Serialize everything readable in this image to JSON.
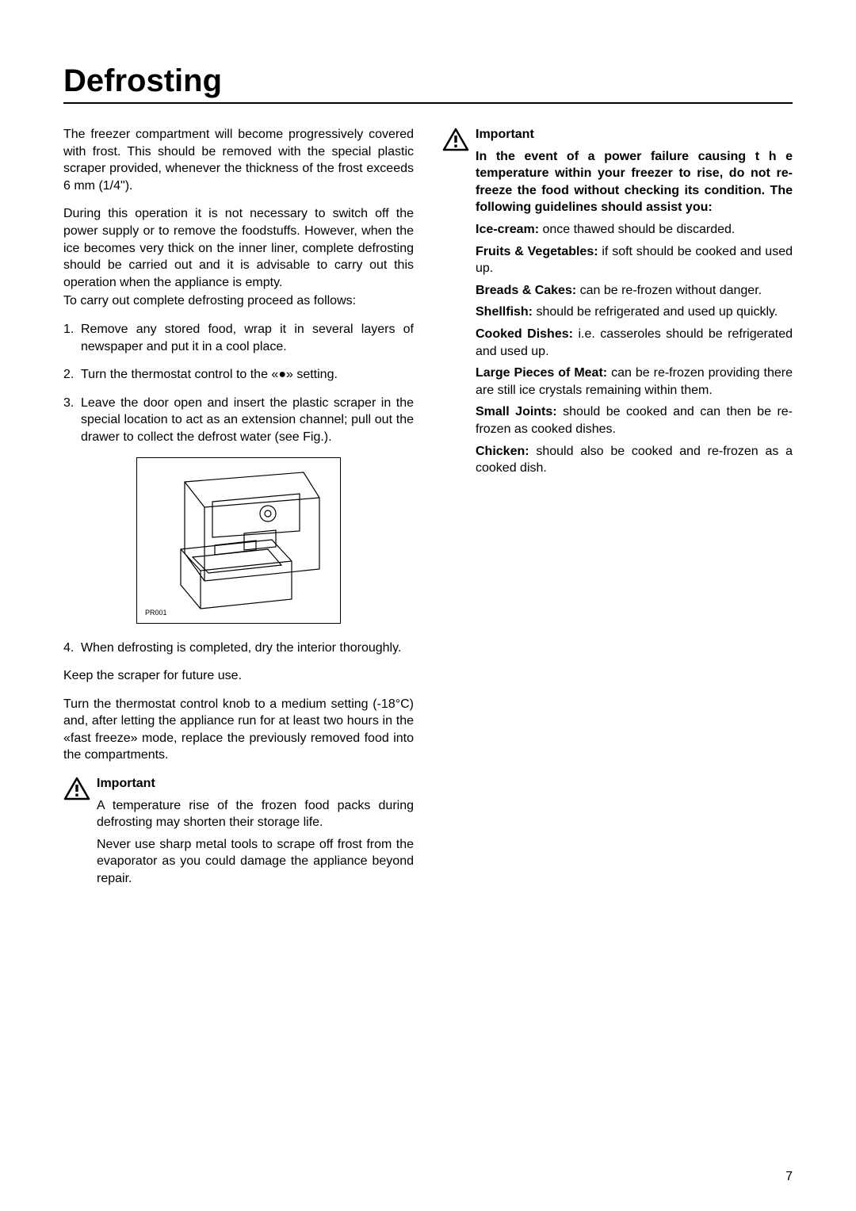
{
  "title": "Defrosting",
  "left": {
    "p1": "The freezer compartment will become progressively covered with frost. This should be removed with the special plastic scraper provided, whenever the thickness of the frost exceeds 6 mm (1/4\").",
    "p2a": "During this operation it is not necessary to switch off the power supply or to remove the foodstuffs. However, when the ice becomes very thick on the inner liner, complete defrosting should be carried out and it is advisable to carry out this operation when the appliance is empty.",
    "p2b": "To carry out complete defrosting proceed as follows:",
    "li1": "Remove any stored food, wrap it in several layers of newspaper and put it in a cool place.",
    "li2": "Turn the thermostat control to the «●» setting.",
    "li3": "Leave the door open and insert the plastic scraper in the special location to act as an extension channel; pull out the drawer to collect the defrost water (see Fig.).",
    "fig_label": "PR001",
    "li4": "When defrosting is completed, dry the interior thoroughly.",
    "p3": "Keep the scraper for future use.",
    "p4": "Turn the thermostat control knob to a medium setting (-18°C) and, after letting the appliance run for at least two hours in the «fast freeze» mode, replace the previously removed food into the compartments.",
    "important_label": "Important",
    "imp_p1": "A temperature rise of the frozen food packs during defrosting may shorten their storage life.",
    "imp_p2": "Never use sharp metal tools to scrape off frost from the evaporator as you could damage the appliance beyond repair."
  },
  "right": {
    "important_label": "Important",
    "intro": "In the event of a power failure causing t h e temperature within your freezer to rise, do not re-freeze the food without checking its condition. The following guidelines should assist you:",
    "guidelines": [
      {
        "label": "Ice-cream:",
        "text": " once thawed should be discarded."
      },
      {
        "label": "Fruits & Vegetables:",
        "text": " if soft should be cooked and used up."
      },
      {
        "label": "Breads & Cakes:",
        "text": " can be re-frozen without danger."
      },
      {
        "label": "Shellfish:",
        "text": " should be refrigerated and used up quickly."
      },
      {
        "label": "Cooked Dishes:",
        "text": " i.e. casseroles should be refrigerated and used up."
      },
      {
        "label": "Large Pieces of Meat:",
        "text": " can be re-frozen providing there are still ice crystals remaining within them."
      },
      {
        "label": "Small Joints:",
        "text": " should be cooked and can then be re-frozen as cooked dishes."
      },
      {
        "label": "Chicken:",
        "text": " should also be cooked and re-frozen as a cooked dish."
      }
    ]
  },
  "page_number": "7",
  "colors": {
    "text": "#000000",
    "background": "#ffffff",
    "rule": "#000000"
  }
}
